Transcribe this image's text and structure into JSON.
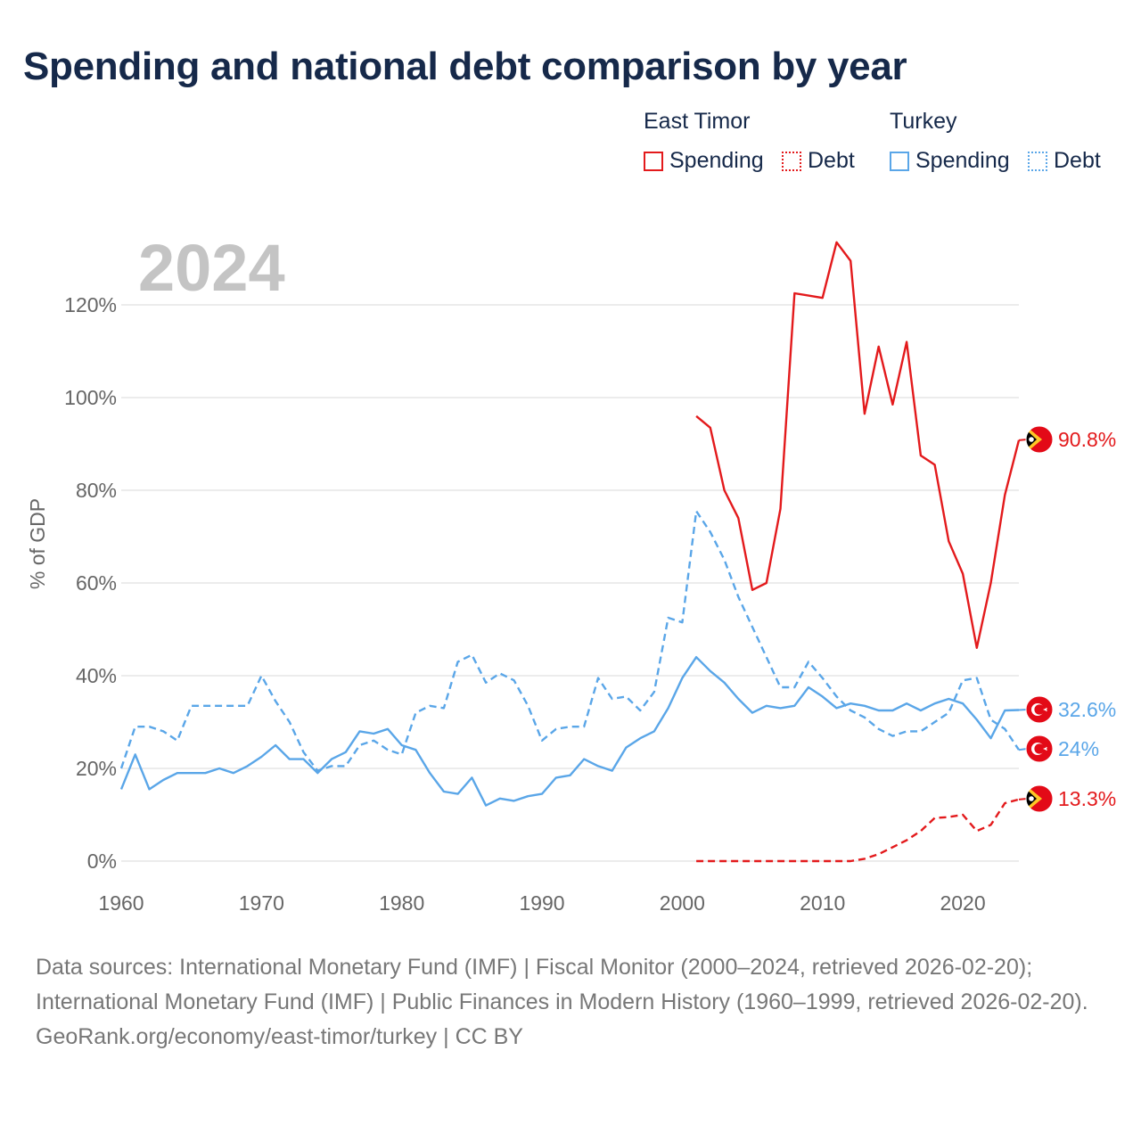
{
  "title": "Spending and national debt comparison by year",
  "legend": {
    "groups": [
      {
        "name": "East Timor",
        "items": [
          {
            "label": "Spending",
            "style": "solid",
            "color": "#e31a1c"
          },
          {
            "label": "Debt",
            "style": "dotted",
            "color": "#e31a1c"
          }
        ]
      },
      {
        "name": "Turkey",
        "items": [
          {
            "label": "Spending",
            "style": "solid",
            "color": "#5aa6e8"
          },
          {
            "label": "Debt",
            "style": "dotted",
            "color": "#5aa6e8"
          }
        ]
      }
    ]
  },
  "year_label": "2024",
  "colors": {
    "east_timor": "#e31a1c",
    "turkey": "#5aa6e8",
    "grid": "#e6e6e6",
    "axis_text": "#666666",
    "title": "#16294a"
  },
  "chart_data": {
    "type": "line",
    "title": "Spending and national debt comparison by year",
    "xlabel": "",
    "ylabel": "% of GDP",
    "xlim": [
      1960,
      2024
    ],
    "ylim": [
      0,
      130
    ],
    "x_ticks": [
      1960,
      1970,
      1980,
      1990,
      2000,
      2010,
      2020
    ],
    "x_tick_labels": [
      "1960",
      "1970",
      "1980",
      "1990",
      "2000",
      "2010",
      "2020"
    ],
    "y_ticks": [
      0,
      20,
      40,
      60,
      80,
      100,
      120
    ],
    "y_tick_labels": [
      "0%",
      "20%",
      "40%",
      "60%",
      "80%",
      "100%",
      "120%"
    ],
    "series": [
      {
        "name": "East Timor Spending",
        "country": "east_timor",
        "color": "#e31a1c",
        "dash": "solid",
        "end_label": "90.8%",
        "flag": "east-timor",
        "x": [
          2001,
          2002,
          2003,
          2004,
          2005,
          2006,
          2007,
          2008,
          2009,
          2010,
          2011,
          2012,
          2013,
          2014,
          2015,
          2016,
          2017,
          2018,
          2019,
          2020,
          2021,
          2022,
          2023,
          2024
        ],
        "y": [
          96,
          93.5,
          80,
          74,
          58.5,
          60,
          76,
          122.5,
          122,
          121.5,
          133.5,
          129.5,
          96.5,
          111,
          98.5,
          112,
          87.5,
          85.5,
          69,
          62,
          46,
          60,
          79,
          90.8
        ]
      },
      {
        "name": "East Timor Debt",
        "country": "east_timor",
        "color": "#e31a1c",
        "dash": "dashed",
        "end_label": "13.3%",
        "flag": "east-timor",
        "x": [
          2001,
          2002,
          2003,
          2004,
          2005,
          2006,
          2007,
          2008,
          2009,
          2010,
          2011,
          2012,
          2013,
          2014,
          2015,
          2016,
          2017,
          2018,
          2019,
          2020,
          2021,
          2022,
          2023,
          2024
        ],
        "y": [
          0,
          0,
          0,
          0,
          0,
          0,
          0,
          0,
          0,
          0,
          0,
          0,
          0.5,
          1.5,
          3,
          4.5,
          6.5,
          9.3,
          9.5,
          10,
          6.5,
          7.8,
          12.5,
          13.3
        ]
      },
      {
        "name": "Turkey Spending",
        "country": "turkey",
        "color": "#5aa6e8",
        "dash": "solid",
        "end_label": "32.6%",
        "flag": "turkey",
        "x": [
          1960,
          1961,
          1962,
          1963,
          1964,
          1965,
          1966,
          1967,
          1968,
          1969,
          1970,
          1971,
          1972,
          1973,
          1974,
          1975,
          1976,
          1977,
          1978,
          1979,
          1980,
          1981,
          1982,
          1983,
          1984,
          1985,
          1986,
          1987,
          1988,
          1989,
          1990,
          1991,
          1992,
          1993,
          1994,
          1995,
          1996,
          1997,
          1998,
          1999,
          2000,
          2001,
          2002,
          2003,
          2004,
          2005,
          2006,
          2007,
          2008,
          2009,
          2010,
          2011,
          2012,
          2013,
          2014,
          2015,
          2016,
          2017,
          2018,
          2019,
          2020,
          2021,
          2022,
          2023,
          2024
        ],
        "y": [
          15.5,
          23,
          15.5,
          17.5,
          19,
          19,
          19,
          20,
          19,
          20.5,
          22.5,
          25,
          22,
          22,
          19,
          22,
          23.5,
          28,
          27.5,
          28.5,
          25,
          24,
          19,
          15,
          14.5,
          18,
          12,
          13.5,
          13,
          14,
          14.5,
          18,
          18.5,
          22,
          20.5,
          19.5,
          24.5,
          26.5,
          28,
          33,
          39.5,
          44,
          41,
          38.5,
          35,
          32,
          33.5,
          33,
          33.5,
          37.5,
          35.5,
          33,
          34,
          33.5,
          32.5,
          32.5,
          34,
          32.5,
          34,
          35,
          34,
          30.5,
          26.5,
          32.5,
          32.6
        ]
      },
      {
        "name": "Turkey Debt",
        "country": "turkey",
        "color": "#5aa6e8",
        "dash": "dashed",
        "end_label": "24%",
        "flag": "turkey",
        "x": [
          1960,
          1961,
          1962,
          1963,
          1964,
          1965,
          1966,
          1967,
          1968,
          1969,
          1970,
          1971,
          1972,
          1973,
          1974,
          1975,
          1976,
          1977,
          1978,
          1979,
          1980,
          1981,
          1982,
          1983,
          1984,
          1985,
          1986,
          1987,
          1988,
          1989,
          1990,
          1991,
          1992,
          1993,
          1994,
          1995,
          1996,
          1997,
          1998,
          1999,
          2000,
          2001,
          2002,
          2003,
          2004,
          2005,
          2006,
          2007,
          2008,
          2009,
          2010,
          2011,
          2012,
          2013,
          2014,
          2015,
          2016,
          2017,
          2018,
          2019,
          2020,
          2021,
          2022,
          2023,
          2024
        ],
        "y": [
          20,
          29,
          29,
          28,
          26,
          33.5,
          33.5,
          33.5,
          33.5,
          33.5,
          40,
          34.5,
          30,
          23.5,
          19.5,
          20.5,
          20.5,
          25,
          26,
          24,
          23,
          32,
          33.5,
          33,
          43,
          44.5,
          38.5,
          40.5,
          39,
          33.5,
          26,
          28.5,
          29,
          29,
          39.5,
          35,
          35.5,
          32.5,
          36.5,
          52.5,
          51.5,
          75.5,
          71,
          65,
          57,
          50.5,
          44,
          37.5,
          37.5,
          43,
          39.5,
          35.5,
          32.5,
          31,
          28.5,
          27,
          28,
          28,
          30,
          32,
          39,
          39.5,
          30.5,
          28.5,
          24
        ]
      }
    ]
  },
  "footer": {
    "sources": "Data sources: International Monetary Fund (IMF) | Fiscal Monitor (2000–2024, retrieved 2026-02-20); International Monetary Fund (IMF) | Public Finances in Modern History (1960–1999, retrieved 2026-02-20).",
    "credit": "GeoRank.org/economy/east-timor/turkey | CC BY"
  }
}
